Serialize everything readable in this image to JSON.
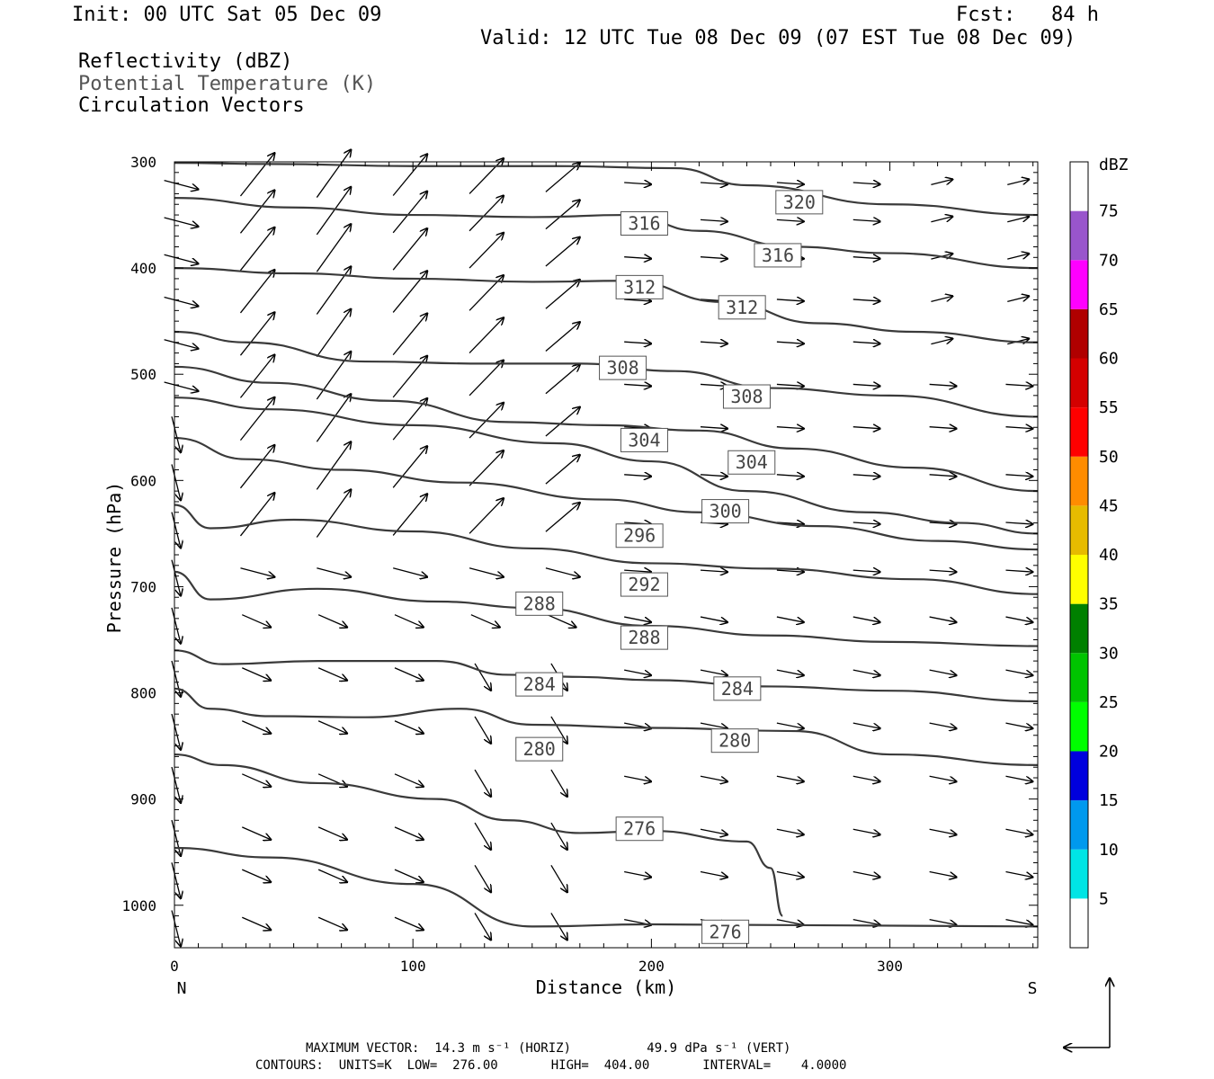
{
  "header": {
    "init": "Init: 00 UTC Sat 05 Dec 09",
    "fcst": "Fcst:   84 h",
    "valid": "Valid: 12 UTC Tue 08 Dec 09 (07 EST Tue 08 Dec 09)",
    "field1": "Reflectivity (dBZ)",
    "field2": "Potential Temperature (K)",
    "field3": "Circulation Vectors"
  },
  "colors": {
    "contour": "#3a3a3a",
    "vector": "#000000",
    "potential_temperature_label": "#555555"
  },
  "chart_data": {
    "type": "cross-section",
    "xlabel": "Distance (km)",
    "ylabel": "Pressure (hPa)",
    "xlim": [
      0,
      362
    ],
    "ylim": [
      1040,
      300
    ],
    "x_ticks": [
      0,
      100,
      200,
      300
    ],
    "y_ticks": [
      300,
      400,
      500,
      600,
      700,
      800,
      900,
      1000
    ],
    "x_end_labels": {
      "left": "N",
      "right": "S"
    },
    "grid": false,
    "contour_field": "Potential Temperature (K)",
    "contours": [
      {
        "level": 320,
        "points": [
          [
            0,
            301
          ],
          [
            40,
            302
          ],
          [
            100,
            304
          ],
          [
            160,
            304
          ],
          [
            210,
            306
          ],
          [
            240,
            322
          ],
          [
            300,
            340
          ],
          [
            362,
            350
          ]
        ]
      },
      {
        "level": 316,
        "points": [
          [
            0,
            334
          ],
          [
            50,
            343
          ],
          [
            100,
            350
          ],
          [
            150,
            352
          ],
          [
            190,
            350
          ],
          [
            220,
            365
          ],
          [
            260,
            380
          ],
          [
            300,
            386
          ],
          [
            362,
            400
          ]
        ]
      },
      {
        "level": 312,
        "points": [
          [
            0,
            400
          ],
          [
            50,
            405
          ],
          [
            100,
            410
          ],
          [
            150,
            413
          ],
          [
            190,
            412
          ],
          [
            230,
            432
          ],
          [
            270,
            452
          ],
          [
            310,
            460
          ],
          [
            362,
            470
          ]
        ]
      },
      {
        "level": 308,
        "points": [
          [
            0,
            460
          ],
          [
            30,
            470
          ],
          [
            80,
            488
          ],
          [
            130,
            490
          ],
          [
            170,
            490
          ],
          [
            210,
            497
          ],
          [
            250,
            513
          ],
          [
            300,
            520
          ],
          [
            362,
            540
          ]
        ]
      },
      {
        "level": 308,
        "points": [
          [
            0,
            493
          ],
          [
            40,
            508
          ],
          [
            90,
            525
          ],
          [
            140,
            545
          ],
          [
            180,
            548
          ],
          [
            220,
            553
          ],
          [
            260,
            570
          ],
          [
            310,
            588
          ],
          [
            362,
            610
          ]
        ]
      },
      {
        "level": 304,
        "points": [
          [
            0,
            522
          ],
          [
            40,
            533
          ],
          [
            100,
            548
          ],
          [
            160,
            565
          ],
          [
            200,
            582
          ],
          [
            240,
            610
          ],
          [
            290,
            630
          ],
          [
            330,
            640
          ],
          [
            362,
            650
          ]
        ]
      },
      {
        "level": 300,
        "points": [
          [
            0,
            560
          ],
          [
            30,
            580
          ],
          [
            70,
            590
          ],
          [
            120,
            602
          ],
          [
            180,
            618
          ],
          [
            220,
            630
          ],
          [
            270,
            643
          ],
          [
            320,
            657
          ],
          [
            362,
            665
          ]
        ]
      },
      {
        "level": 296,
        "points": [
          [
            0,
            623
          ],
          [
            15,
            645
          ],
          [
            50,
            637
          ],
          [
            100,
            648
          ],
          [
            150,
            664
          ],
          [
            200,
            678
          ],
          [
            250,
            683
          ],
          [
            310,
            693
          ],
          [
            362,
            707
          ]
        ]
      },
      {
        "level": 292,
        "points": [
          [
            0,
            686
          ],
          [
            15,
            712
          ],
          [
            60,
            702
          ],
          [
            110,
            714
          ],
          [
            150,
            720
          ],
          [
            200,
            737
          ],
          [
            250,
            746
          ],
          [
            300,
            752
          ],
          [
            362,
            756
          ]
        ]
      },
      {
        "level": 288,
        "points": [
          [
            0,
            760
          ],
          [
            20,
            773
          ],
          [
            60,
            770
          ],
          [
            110,
            770
          ],
          [
            140,
            783
          ],
          [
            170,
            785
          ],
          [
            200,
            788
          ],
          [
            250,
            794
          ],
          [
            300,
            798
          ],
          [
            362,
            808
          ]
        ]
      },
      {
        "level": 284,
        "points": [
          [
            0,
            796
          ],
          [
            15,
            815
          ],
          [
            40,
            822
          ],
          [
            80,
            823
          ],
          [
            120,
            815
          ],
          [
            150,
            830
          ],
          [
            200,
            833
          ],
          [
            260,
            836
          ],
          [
            300,
            858
          ],
          [
            362,
            868
          ]
        ]
      },
      {
        "level": 280,
        "points": [
          [
            0,
            858
          ],
          [
            20,
            868
          ],
          [
            60,
            885
          ],
          [
            110,
            900
          ],
          [
            140,
            920
          ],
          [
            170,
            932
          ],
          [
            200,
            930
          ],
          [
            240,
            940
          ],
          [
            250,
            965
          ],
          [
            255,
            1010
          ]
        ]
      },
      {
        "level": 276,
        "points": [
          [
            0,
            946
          ],
          [
            40,
            955
          ],
          [
            100,
            980
          ],
          [
            150,
            1020
          ],
          [
            200,
            1018
          ],
          [
            362,
            1020
          ]
        ]
      }
    ],
    "contour_labels": [
      {
        "text": "320",
        "x": 262,
        "y": 338
      },
      {
        "text": "316",
        "x": 197,
        "y": 358
      },
      {
        "text": "316",
        "x": 253,
        "y": 388
      },
      {
        "text": "312",
        "x": 195,
        "y": 418
      },
      {
        "text": "312",
        "x": 238,
        "y": 437
      },
      {
        "text": "308",
        "x": 188,
        "y": 494
      },
      {
        "text": "308",
        "x": 240,
        "y": 521
      },
      {
        "text": "304",
        "x": 197,
        "y": 562
      },
      {
        "text": "304",
        "x": 242,
        "y": 583
      },
      {
        "text": "300",
        "x": 231,
        "y": 629
      },
      {
        "text": "296",
        "x": 195,
        "y": 652
      },
      {
        "text": "292",
        "x": 197,
        "y": 698
      },
      {
        "text": "288",
        "x": 153,
        "y": 716
      },
      {
        "text": "288",
        "x": 197,
        "y": 748
      },
      {
        "text": "284",
        "x": 153,
        "y": 792
      },
      {
        "text": "284",
        "x": 236,
        "y": 796
      },
      {
        "text": "280",
        "x": 153,
        "y": 853
      },
      {
        "text": "280",
        "x": 235,
        "y": 845
      },
      {
        "text": "276",
        "x": 195,
        "y": 928
      },
      {
        "text": "276",
        "x": 231,
        "y": 1025
      }
    ],
    "colorbar": {
      "title": "dBZ",
      "levels": [
        5,
        10,
        15,
        20,
        25,
        30,
        35,
        40,
        45,
        50,
        55,
        60,
        65,
        70,
        75
      ],
      "colors": [
        "#ffffff",
        "#00e5e5",
        "#0099ee",
        "#0000dd",
        "#00ff00",
        "#00c400",
        "#008000",
        "#ffff00",
        "#e6bb00",
        "#ff8c00",
        "#ff0000",
        "#d40000",
        "#b00000",
        "#ff00ff",
        "#9955cc",
        "#ffffff"
      ]
    }
  },
  "footer": {
    "max_vector": "MAXIMUM VECTOR:  14.3 m s⁻¹ (HORIZ)          49.9 dPa s⁻¹ (VERT)",
    "contours": "CONTOURS:  UNITS=K  LOW=  276.00       HIGH=  404.00       INTERVAL=    4.0000"
  }
}
